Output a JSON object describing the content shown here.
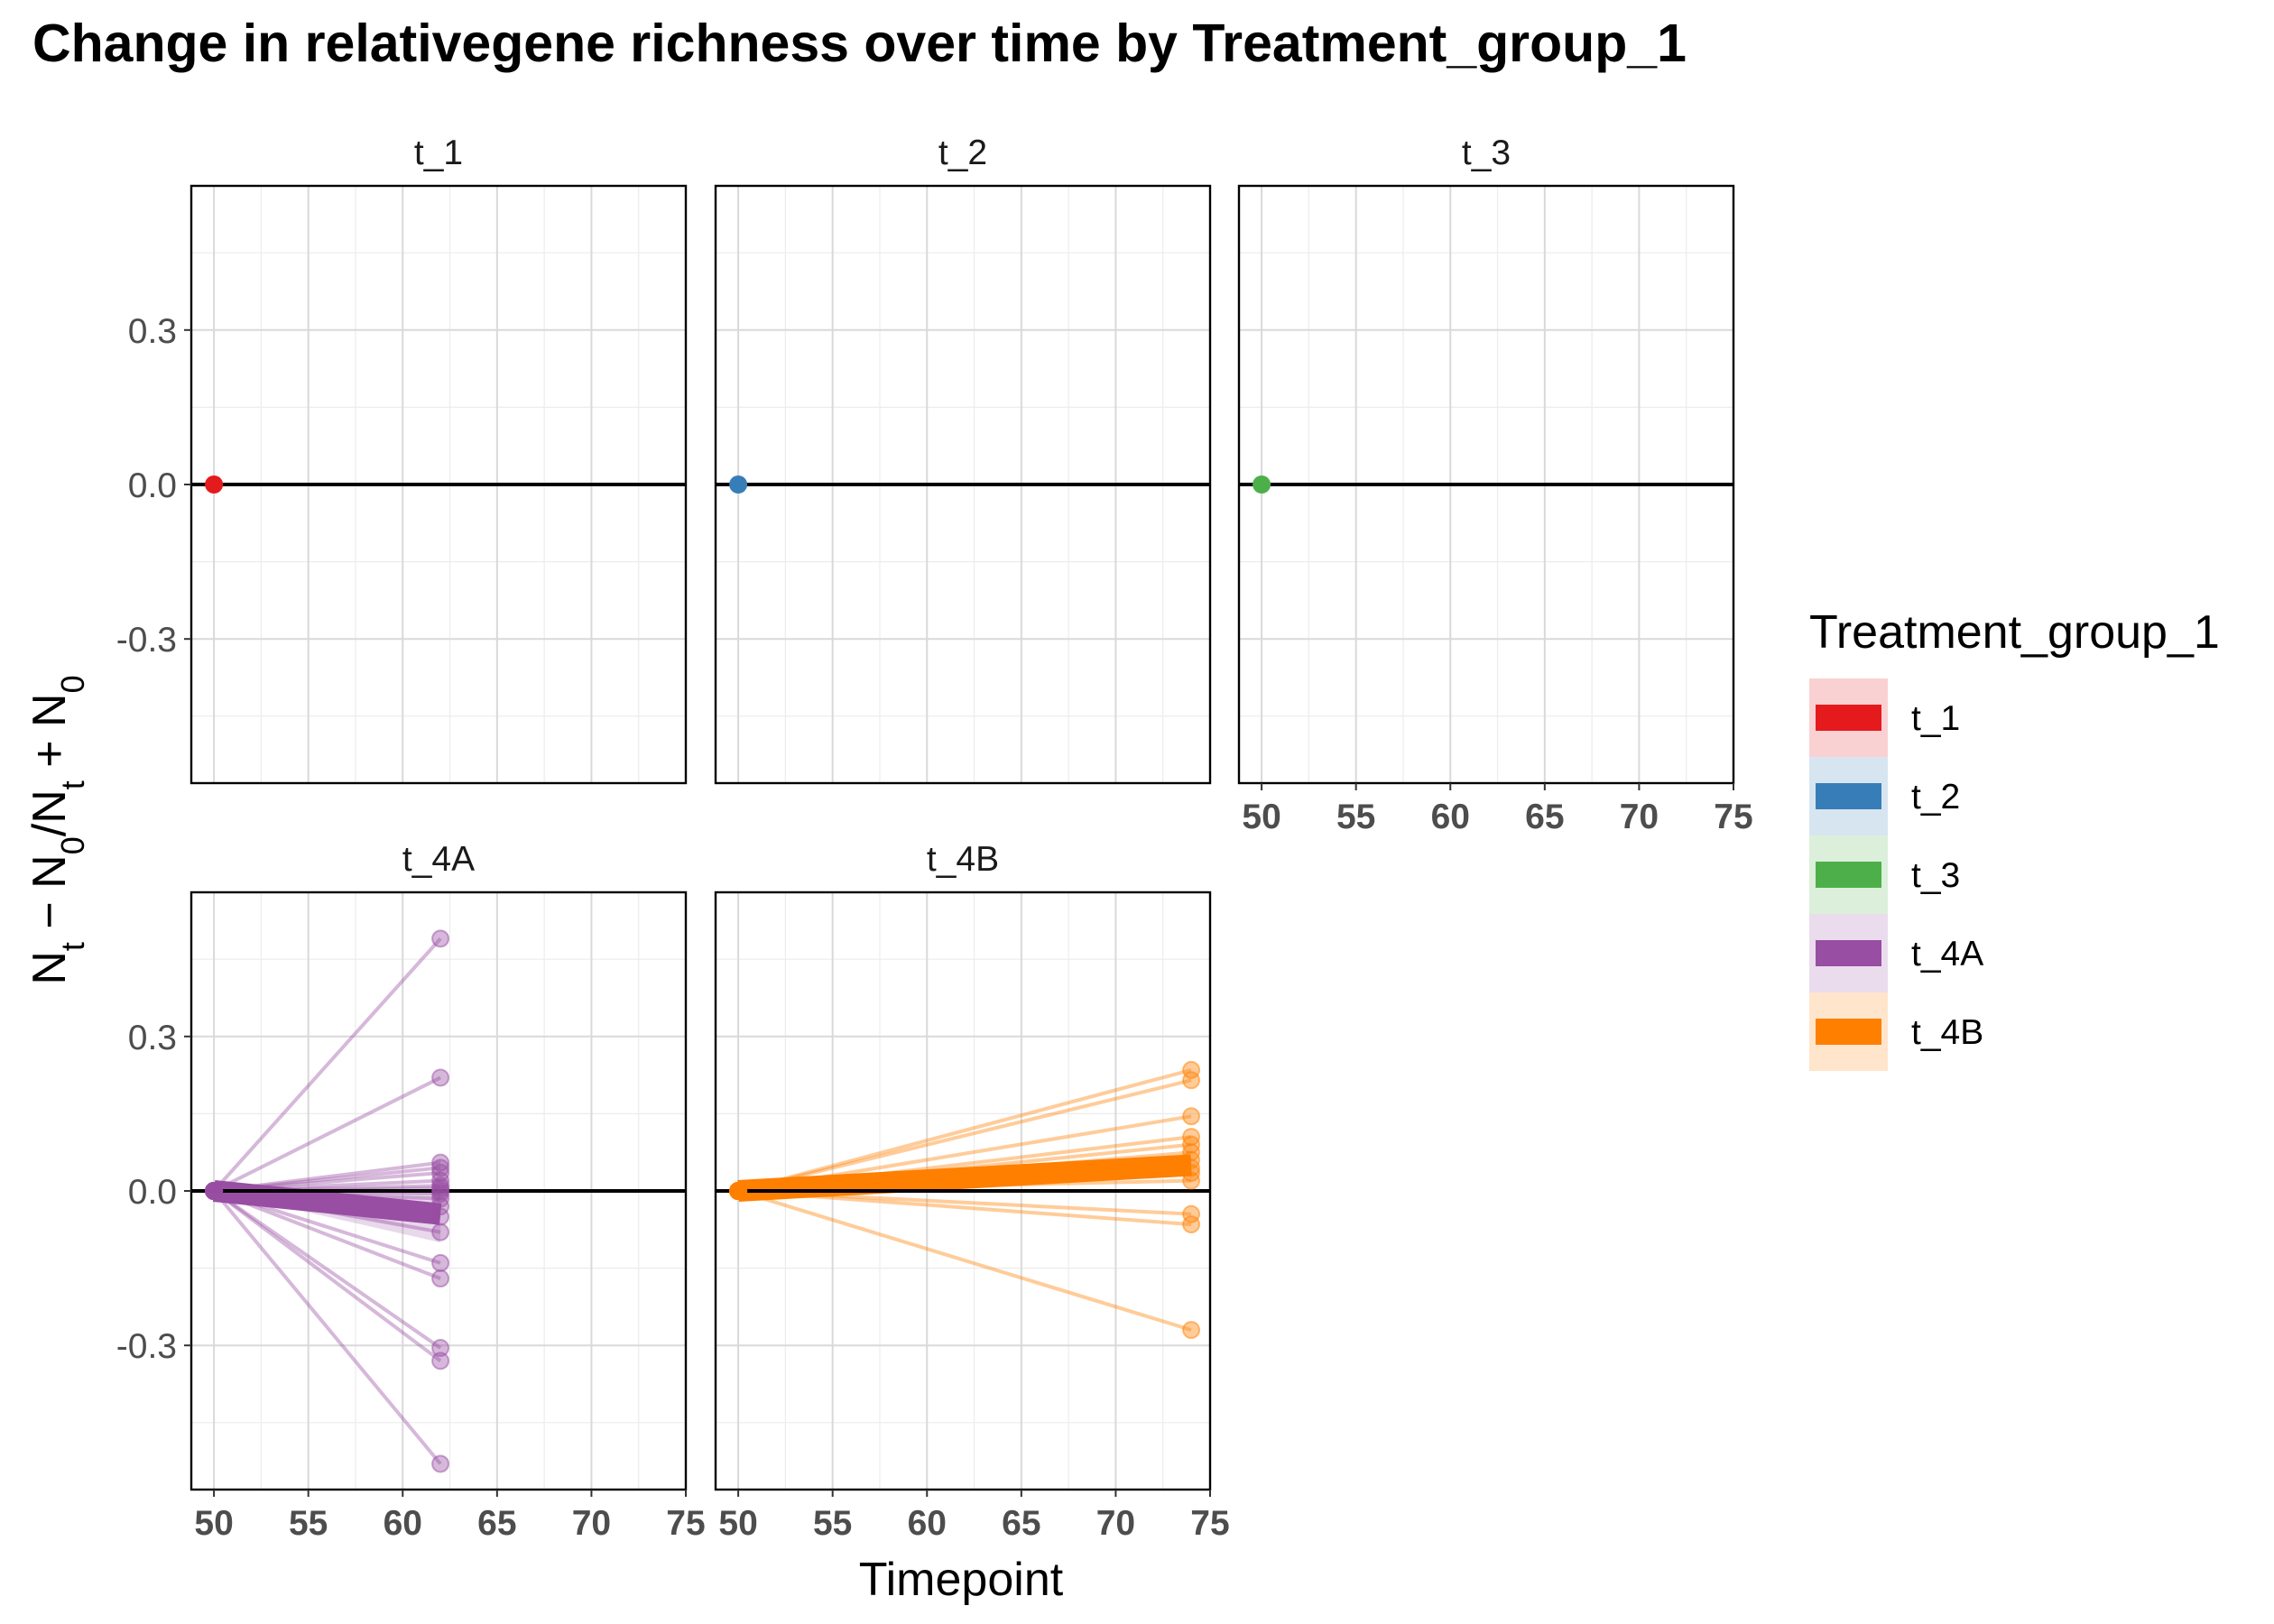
{
  "chart_data": {
    "type": "line",
    "title": "Change in relativegene richness over time by Treatment_group_1",
    "xlabel": "Timepoint",
    "ylabel_parts": {
      "n1": "N",
      "s1": "t",
      "op1": " − ",
      "n2": "N",
      "s2": "0",
      "op2": "/",
      "n3": "N",
      "s3": "t",
      "op3": " + ",
      "n4": "N",
      "s4": "0"
    },
    "xlim": [
      48.8,
      75
    ],
    "ylim": [
      -0.58,
      0.58
    ],
    "x_ticks": [
      "50",
      "55",
      "60",
      "65",
      "70",
      "75"
    ],
    "y_ticks": [
      "0.3",
      "0.0",
      "-0.3"
    ],
    "x_tick_values": [
      50,
      55,
      60,
      65,
      70,
      75
    ],
    "y_tick_values": [
      0.3,
      0.0,
      -0.3
    ],
    "grid": true,
    "reference_line_y": 0,
    "legend": {
      "title": "Treatment_group_1",
      "placement": "right",
      "entries": [
        {
          "label": "t_1",
          "color": "#E41A1C"
        },
        {
          "label": "t_2",
          "color": "#377EB8"
        },
        {
          "label": "t_3",
          "color": "#4DAF4A"
        },
        {
          "label": "t_4A",
          "color": "#984EA3"
        },
        {
          "label": "t_4B",
          "color": "#FF7F00"
        }
      ]
    },
    "panels": [
      {
        "label": "t_1",
        "color": "#E41A1C",
        "start_x": 50,
        "end_x": null,
        "end_values": [],
        "trend_end": null
      },
      {
        "label": "t_2",
        "color": "#377EB8",
        "start_x": 50,
        "end_x": null,
        "end_values": [],
        "trend_end": null
      },
      {
        "label": "t_3",
        "color": "#4DAF4A",
        "start_x": 50,
        "end_x": null,
        "end_values": [],
        "trend_end": null
      },
      {
        "label": "t_4A",
        "color": "#984EA3",
        "start_x": 50,
        "end_x": 62,
        "end_values": [
          0.49,
          0.22,
          0.055,
          0.045,
          0.035,
          0.02,
          0.01,
          0.005,
          0.0,
          -0.005,
          -0.015,
          -0.03,
          -0.05,
          -0.08,
          -0.14,
          -0.17,
          -0.305,
          -0.33,
          -0.53
        ],
        "trend_end": -0.045,
        "trend_band": [
          -0.1,
          0.0
        ]
      },
      {
        "label": "t_4B",
        "color": "#FF7F00",
        "start_x": 50,
        "end_x": 74,
        "end_values": [
          0.235,
          0.215,
          0.145,
          0.105,
          0.09,
          0.075,
          0.06,
          0.045,
          0.035,
          0.02,
          -0.045,
          -0.065,
          -0.27
        ],
        "trend_end": 0.05,
        "trend_band": [
          0.035,
          0.065
        ]
      }
    ]
  }
}
